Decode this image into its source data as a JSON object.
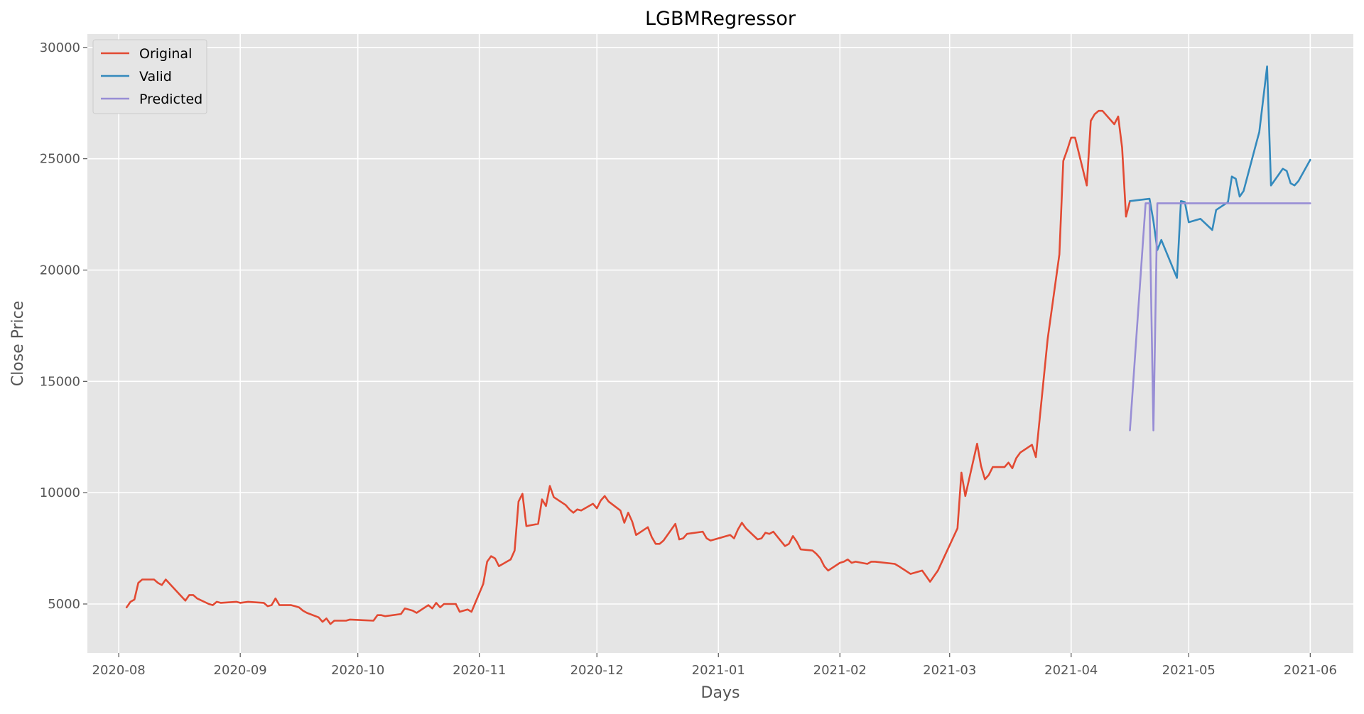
{
  "chart_data": {
    "type": "line",
    "title": "LGBMRegressor",
    "xlabel": "Days",
    "ylabel": "Close Price",
    "xlim": [
      "2020-07-24",
      "2021-06-12"
    ],
    "ylim": [
      2800,
      30600
    ],
    "grid": true,
    "legend_position": "top-left",
    "x_ticks": [
      {
        "value": "2020-08-01",
        "label": "2020-08"
      },
      {
        "value": "2020-09-01",
        "label": "2020-09"
      },
      {
        "value": "2020-10-01",
        "label": "2020-10"
      },
      {
        "value": "2020-11-01",
        "label": "2020-11"
      },
      {
        "value": "2020-12-01",
        "label": "2020-12"
      },
      {
        "value": "2021-01-01",
        "label": "2021-01"
      },
      {
        "value": "2021-02-01",
        "label": "2021-02"
      },
      {
        "value": "2021-03-01",
        "label": "2021-03"
      },
      {
        "value": "2021-04-01",
        "label": "2021-04"
      },
      {
        "value": "2021-05-01",
        "label": "2021-05"
      },
      {
        "value": "2021-06-01",
        "label": "2021-06"
      }
    ],
    "y_ticks": [
      {
        "value": 5000,
        "label": "5000"
      },
      {
        "value": 10000,
        "label": "10000"
      },
      {
        "value": 15000,
        "label": "15000"
      },
      {
        "value": 20000,
        "label": "20000"
      },
      {
        "value": 25000,
        "label": "25000"
      },
      {
        "value": 30000,
        "label": "30000"
      }
    ],
    "series": [
      {
        "name": "Original",
        "color": "#E24A33",
        "points": [
          [
            "2020-08-03",
            4850
          ],
          [
            "2020-08-04",
            5100
          ],
          [
            "2020-08-05",
            5200
          ],
          [
            "2020-08-06",
            5950
          ],
          [
            "2020-08-07",
            6100
          ],
          [
            "2020-08-10",
            6100
          ],
          [
            "2020-08-11",
            5950
          ],
          [
            "2020-08-12",
            5850
          ],
          [
            "2020-08-13",
            6100
          ],
          [
            "2020-08-18",
            5150
          ],
          [
            "2020-08-19",
            5400
          ],
          [
            "2020-08-20",
            5400
          ],
          [
            "2020-08-21",
            5250
          ],
          [
            "2020-08-24",
            5000
          ],
          [
            "2020-08-25",
            4950
          ],
          [
            "2020-08-26",
            5100
          ],
          [
            "2020-08-27",
            5050
          ],
          [
            "2020-08-31",
            5100
          ],
          [
            "2020-09-01",
            5050
          ],
          [
            "2020-09-03",
            5100
          ],
          [
            "2020-09-07",
            5050
          ],
          [
            "2020-09-08",
            4900
          ],
          [
            "2020-09-09",
            4950
          ],
          [
            "2020-09-10",
            5250
          ],
          [
            "2020-09-11",
            4950
          ],
          [
            "2020-09-14",
            4950
          ],
          [
            "2020-09-15",
            4900
          ],
          [
            "2020-09-16",
            4850
          ],
          [
            "2020-09-17",
            4700
          ],
          [
            "2020-09-18",
            4600
          ],
          [
            "2020-09-21",
            4400
          ],
          [
            "2020-09-22",
            4200
          ],
          [
            "2020-09-23",
            4350
          ],
          [
            "2020-09-24",
            4100
          ],
          [
            "2020-09-25",
            4250
          ],
          [
            "2020-09-28",
            4250
          ],
          [
            "2020-09-29",
            4300
          ],
          [
            "2020-10-05",
            4250
          ],
          [
            "2020-10-06",
            4500
          ],
          [
            "2020-10-07",
            4500
          ],
          [
            "2020-10-08",
            4450
          ],
          [
            "2020-10-12",
            4550
          ],
          [
            "2020-10-13",
            4800
          ],
          [
            "2020-10-15",
            4700
          ],
          [
            "2020-10-16",
            4600
          ],
          [
            "2020-10-19",
            4950
          ],
          [
            "2020-10-20",
            4800
          ],
          [
            "2020-10-21",
            5050
          ],
          [
            "2020-10-22",
            4850
          ],
          [
            "2020-10-23",
            5000
          ],
          [
            "2020-10-26",
            5000
          ],
          [
            "2020-10-27",
            4650
          ],
          [
            "2020-10-28",
            4700
          ],
          [
            "2020-10-29",
            4750
          ],
          [
            "2020-10-30",
            4650
          ],
          [
            "2020-11-02",
            5900
          ],
          [
            "2020-11-03",
            6900
          ],
          [
            "2020-11-04",
            7150
          ],
          [
            "2020-11-05",
            7050
          ],
          [
            "2020-11-06",
            6700
          ],
          [
            "2020-11-09",
            7000
          ],
          [
            "2020-11-10",
            7400
          ],
          [
            "2020-11-11",
            9600
          ],
          [
            "2020-11-12",
            9950
          ],
          [
            "2020-11-13",
            8500
          ],
          [
            "2020-11-16",
            8600
          ],
          [
            "2020-11-17",
            9700
          ],
          [
            "2020-11-18",
            9400
          ],
          [
            "2020-11-19",
            10300
          ],
          [
            "2020-11-20",
            9800
          ],
          [
            "2020-11-23",
            9450
          ],
          [
            "2020-11-24",
            9250
          ],
          [
            "2020-11-25",
            9100
          ],
          [
            "2020-11-26",
            9250
          ],
          [
            "2020-11-27",
            9200
          ],
          [
            "2020-11-30",
            9500
          ],
          [
            "2020-12-01",
            9300
          ],
          [
            "2020-12-02",
            9650
          ],
          [
            "2020-12-03",
            9850
          ],
          [
            "2020-12-04",
            9600
          ],
          [
            "2020-12-07",
            9200
          ],
          [
            "2020-12-08",
            8650
          ],
          [
            "2020-12-09",
            9100
          ],
          [
            "2020-12-10",
            8700
          ],
          [
            "2020-12-11",
            8100
          ],
          [
            "2020-12-14",
            8450
          ],
          [
            "2020-12-15",
            8000
          ],
          [
            "2020-12-16",
            7700
          ],
          [
            "2020-12-17",
            7700
          ],
          [
            "2020-12-18",
            7850
          ],
          [
            "2020-12-21",
            8600
          ],
          [
            "2020-12-22",
            7900
          ],
          [
            "2020-12-23",
            7950
          ],
          [
            "2020-12-24",
            8150
          ],
          [
            "2020-12-28",
            8250
          ],
          [
            "2020-12-29",
            7950
          ],
          [
            "2020-12-30",
            7850
          ],
          [
            "2021-01-04",
            8100
          ],
          [
            "2021-01-05",
            7950
          ],
          [
            "2021-01-06",
            8350
          ],
          [
            "2021-01-07",
            8650
          ],
          [
            "2021-01-08",
            8400
          ],
          [
            "2021-01-11",
            7900
          ],
          [
            "2021-01-12",
            7950
          ],
          [
            "2021-01-13",
            8200
          ],
          [
            "2021-01-14",
            8150
          ],
          [
            "2021-01-15",
            8250
          ],
          [
            "2021-01-18",
            7600
          ],
          [
            "2021-01-19",
            7700
          ],
          [
            "2021-01-20",
            8050
          ],
          [
            "2021-01-21",
            7800
          ],
          [
            "2021-01-22",
            7450
          ],
          [
            "2021-01-25",
            7400
          ],
          [
            "2021-01-26",
            7250
          ],
          [
            "2021-01-27",
            7050
          ],
          [
            "2021-01-28",
            6700
          ],
          [
            "2021-01-29",
            6500
          ],
          [
            "2021-02-01",
            6850
          ],
          [
            "2021-02-02",
            6900
          ],
          [
            "2021-02-03",
            7000
          ],
          [
            "2021-02-04",
            6850
          ],
          [
            "2021-02-05",
            6900
          ],
          [
            "2021-02-08",
            6800
          ],
          [
            "2021-02-09",
            6900
          ],
          [
            "2021-02-10",
            6900
          ],
          [
            "2021-02-15",
            6800
          ],
          [
            "2021-02-16",
            6700
          ],
          [
            "2021-02-19",
            6350
          ],
          [
            "2021-02-22",
            6500
          ],
          [
            "2021-02-24",
            6000
          ],
          [
            "2021-02-26",
            6500
          ],
          [
            "2021-03-03",
            8400
          ],
          [
            "2021-03-04",
            10900
          ],
          [
            "2021-03-05",
            9850
          ],
          [
            "2021-03-08",
            12200
          ],
          [
            "2021-03-09",
            11200
          ],
          [
            "2021-03-10",
            10600
          ],
          [
            "2021-03-11",
            10800
          ],
          [
            "2021-03-12",
            11150
          ],
          [
            "2021-03-15",
            11150
          ],
          [
            "2021-03-16",
            11350
          ],
          [
            "2021-03-17",
            11100
          ],
          [
            "2021-03-18",
            11550
          ],
          [
            "2021-03-19",
            11800
          ],
          [
            "2021-03-22",
            12150
          ],
          [
            "2021-03-23",
            11600
          ],
          [
            "2021-03-26",
            16900
          ],
          [
            "2021-03-29",
            20700
          ],
          [
            "2021-03-30",
            24900
          ],
          [
            "2021-03-31",
            25400
          ],
          [
            "2021-04-01",
            25950
          ],
          [
            "2021-04-02",
            25950
          ],
          [
            "2021-04-05",
            23800
          ],
          [
            "2021-04-06",
            26700
          ],
          [
            "2021-04-07",
            27000
          ],
          [
            "2021-04-08",
            27150
          ],
          [
            "2021-04-09",
            27150
          ],
          [
            "2021-04-12",
            26550
          ],
          [
            "2021-04-13",
            26900
          ],
          [
            "2021-04-14",
            25500
          ],
          [
            "2021-04-15",
            22400
          ],
          [
            "2021-04-16",
            23100
          ]
        ]
      },
      {
        "name": "Valid",
        "color": "#348ABD",
        "points": [
          [
            "2021-04-16",
            23100
          ],
          [
            "2021-04-21",
            23200
          ],
          [
            "2021-04-22",
            22200
          ],
          [
            "2021-04-23",
            20900
          ],
          [
            "2021-04-24",
            21350
          ],
          [
            "2021-04-28",
            19650
          ],
          [
            "2021-04-29",
            23100
          ],
          [
            "2021-04-30",
            23050
          ],
          [
            "2021-05-01",
            22150
          ],
          [
            "2021-05-04",
            22300
          ],
          [
            "2021-05-07",
            21800
          ],
          [
            "2021-05-08",
            22700
          ],
          [
            "2021-05-11",
            23050
          ],
          [
            "2021-05-12",
            24200
          ],
          [
            "2021-05-13",
            24100
          ],
          [
            "2021-05-14",
            23300
          ],
          [
            "2021-05-15",
            23550
          ],
          [
            "2021-05-18",
            25550
          ],
          [
            "2021-05-19",
            26200
          ],
          [
            "2021-05-21",
            29150
          ],
          [
            "2021-05-22",
            23800
          ],
          [
            "2021-05-25",
            24550
          ],
          [
            "2021-05-26",
            24450
          ],
          [
            "2021-05-27",
            23900
          ],
          [
            "2021-05-28",
            23800
          ],
          [
            "2021-05-29",
            24000
          ],
          [
            "2021-06-01",
            24950
          ]
        ]
      },
      {
        "name": "Predicted",
        "color": "#988ED5",
        "points": [
          [
            "2021-04-16",
            12800
          ],
          [
            "2021-04-20",
            23000
          ],
          [
            "2021-04-21",
            23000
          ],
          [
            "2021-04-22",
            12800
          ],
          [
            "2021-04-23",
            23000
          ],
          [
            "2021-06-01",
            23000
          ]
        ]
      }
    ]
  }
}
